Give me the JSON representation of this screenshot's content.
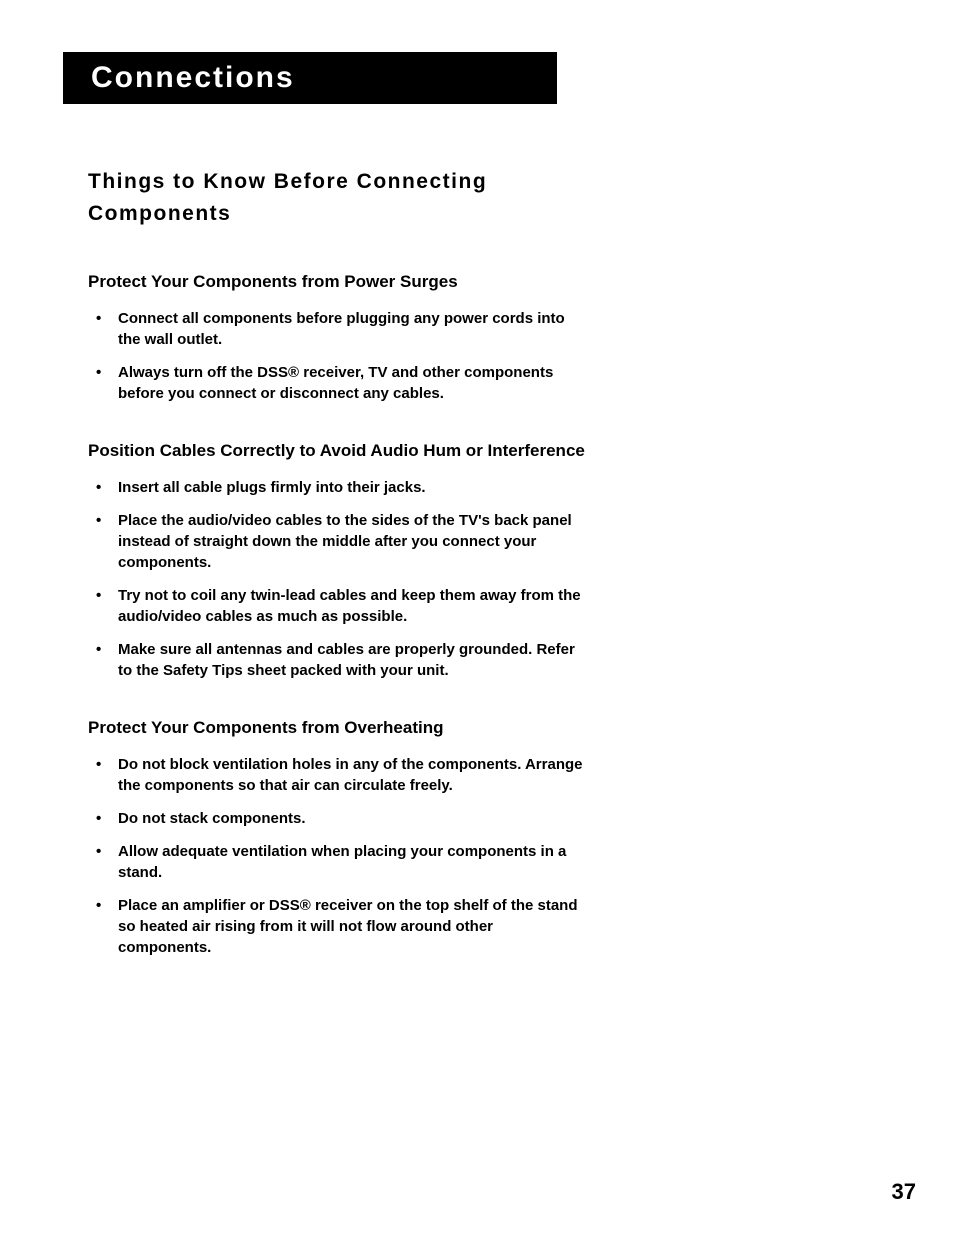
{
  "header": {
    "title": "Connections"
  },
  "main": {
    "heading": "Things to Know Before Connecting Components",
    "sections": [
      {
        "subheading": "Protect Your Components from Power Surges",
        "items": [
          "Connect all components before plugging any power cords into the wall outlet.",
          "Always turn off the DSS® receiver, TV and other components before you connect or disconnect any cables."
        ]
      },
      {
        "subheading": "Position Cables Correctly to Avoid Audio Hum or Interference",
        "items": [
          "Insert all cable plugs firmly into their jacks.",
          "Place the audio/video cables to the sides of the TV's back panel instead of straight down the middle after you connect your components.",
          "Try not to coil any twin-lead cables and keep them away from the audio/video cables as much as possible.",
          "Make sure all antennas and cables are properly grounded. Refer to the Safety Tips sheet packed with your unit."
        ]
      },
      {
        "subheading": "Protect Your Components from Overheating",
        "items": [
          "Do not block ventilation holes in any of the components. Arrange the components so that air can circulate freely.",
          "Do not stack components.",
          "Allow adequate ventilation when placing your components in a stand.",
          "Place an amplifier or DSS® receiver on the top shelf of the stand so heated air rising from it will not flow around other components."
        ]
      }
    ]
  },
  "footer": {
    "page_number": "37"
  },
  "colors": {
    "background": "#ffffff",
    "title_bar_bg": "#000000",
    "title_text": "#ffffff",
    "body_text": "#000000"
  },
  "typography": {
    "title_fontsize": 30,
    "heading_fontsize": 21,
    "subheading_fontsize": 17,
    "body_fontsize": 15,
    "pagenum_fontsize": 22
  }
}
